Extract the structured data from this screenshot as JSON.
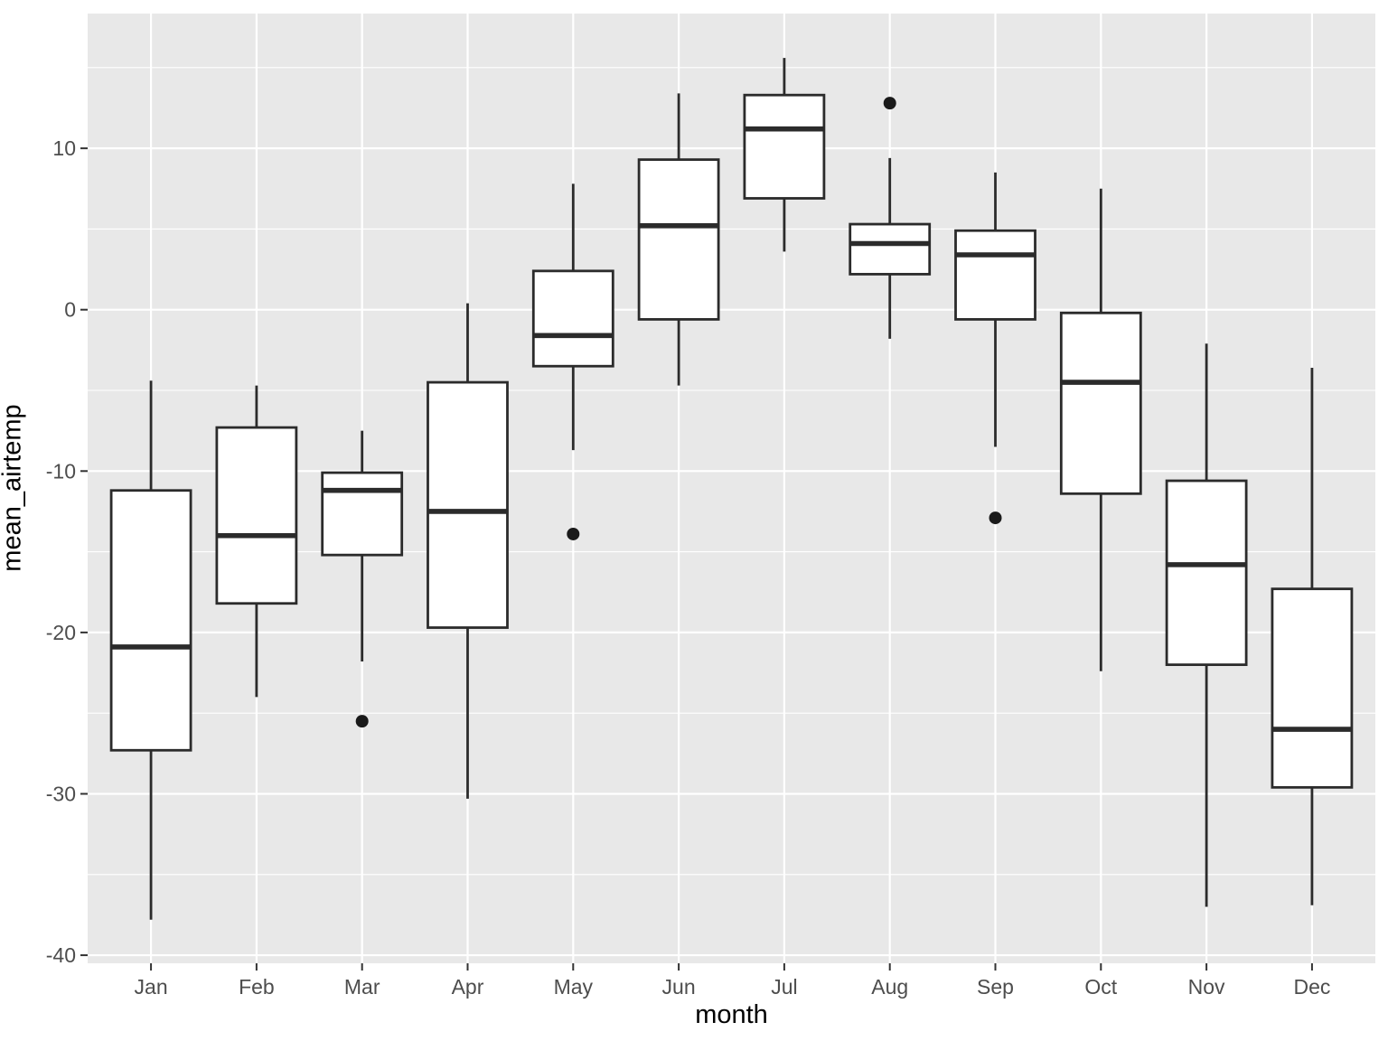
{
  "figure": {
    "background": "#FFFFFF"
  },
  "chart_data": {
    "type": "boxplot",
    "title": "",
    "xlabel": "month",
    "ylabel": "mean_airtemp",
    "categories": [
      "Jan",
      "Feb",
      "Mar",
      "Apr",
      "May",
      "Jun",
      "Jul",
      "Aug",
      "Sep",
      "Oct",
      "Nov",
      "Dec"
    ],
    "series": [
      {
        "name": "Jan",
        "whisker_low": -37.8,
        "q1": -27.3,
        "median": -20.9,
        "q3": -11.2,
        "whisker_high": -4.4,
        "outliers": []
      },
      {
        "name": "Feb",
        "whisker_low": -24.0,
        "q1": -18.2,
        "median": -14.0,
        "q3": -7.3,
        "whisker_high": -4.7,
        "outliers": []
      },
      {
        "name": "Mar",
        "whisker_low": -21.8,
        "q1": -15.2,
        "median": -11.2,
        "q3": -10.1,
        "whisker_high": -7.5,
        "outliers": [
          -25.5
        ]
      },
      {
        "name": "Apr",
        "whisker_low": -30.3,
        "q1": -19.7,
        "median": -12.5,
        "q3": -4.5,
        "whisker_high": 0.4,
        "outliers": []
      },
      {
        "name": "May",
        "whisker_low": -8.7,
        "q1": -3.5,
        "median": -1.6,
        "q3": 2.4,
        "whisker_high": 7.8,
        "outliers": [
          -13.9
        ]
      },
      {
        "name": "Jun",
        "whisker_low": -4.7,
        "q1": -0.6,
        "median": 5.2,
        "q3": 9.3,
        "whisker_high": 13.4,
        "outliers": []
      },
      {
        "name": "Jul",
        "whisker_low": 3.6,
        "q1": 6.9,
        "median": 11.2,
        "q3": 13.3,
        "whisker_high": 15.6,
        "outliers": []
      },
      {
        "name": "Aug",
        "whisker_low": -1.8,
        "q1": 2.2,
        "median": 4.1,
        "q3": 5.3,
        "whisker_high": 9.4,
        "outliers": [
          12.8
        ]
      },
      {
        "name": "Sep",
        "whisker_low": -8.5,
        "q1": -0.6,
        "median": 3.4,
        "q3": 4.9,
        "whisker_high": 8.5,
        "outliers": [
          -12.9
        ]
      },
      {
        "name": "Oct",
        "whisker_low": -22.4,
        "q1": -11.4,
        "median": -4.5,
        "q3": -0.2,
        "whisker_high": 7.5,
        "outliers": []
      },
      {
        "name": "Nov",
        "whisker_low": -37.0,
        "q1": -22.0,
        "median": -15.8,
        "q3": -10.6,
        "whisker_high": -2.1,
        "outliers": []
      },
      {
        "name": "Dec",
        "whisker_low": -36.9,
        "q1": -29.6,
        "median": -26.0,
        "q3": -17.3,
        "whisker_high": -3.6,
        "outliers": []
      }
    ],
    "y_major_ticks": [
      10,
      0,
      -10,
      -20,
      -30,
      -40
    ],
    "y_minor_ticks": [
      15,
      5,
      -5,
      -15,
      -25,
      -35
    ],
    "ylim": [
      -40.5,
      18.35
    ],
    "grid": true,
    "legend": "none",
    "colors": {
      "panel_bg": "#E8E8E8",
      "grid": "#FFFFFF",
      "box_stroke": "#2B2B2B",
      "box_fill": "#FFFFFF",
      "outlier": "#1A1A1A",
      "tick_mark": "#333333",
      "tick_label": "#4D4D4D",
      "axis_title": "#000000"
    }
  }
}
